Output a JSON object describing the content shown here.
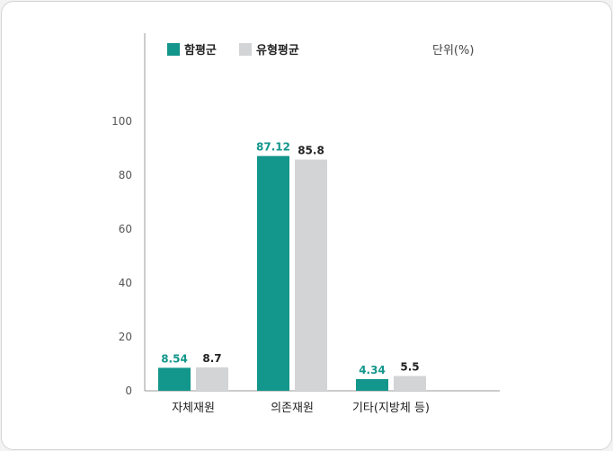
{
  "chart_data": {
    "type": "bar",
    "categories": [
      "자체재원",
      "의존재원",
      "기타(지방체 등)"
    ],
    "series": [
      {
        "name": "함평군",
        "values": [
          8.54,
          87.12,
          4.34
        ],
        "color": "#13968b"
      },
      {
        "name": "유형평균",
        "values": [
          8.7,
          85.8,
          5.5
        ],
        "color": "#d3d4d6"
      }
    ],
    "value_labels": [
      [
        "8.54",
        "87.12",
        "4.34"
      ],
      [
        "8.7",
        "85.8",
        "5.5"
      ]
    ],
    "unit_label": "단위(%)",
    "y_ticks": [
      "0",
      "20",
      "40",
      "60",
      "80",
      "100"
    ],
    "ylim": [
      0,
      100
    ],
    "grid": false,
    "legend_position": "top-left"
  }
}
